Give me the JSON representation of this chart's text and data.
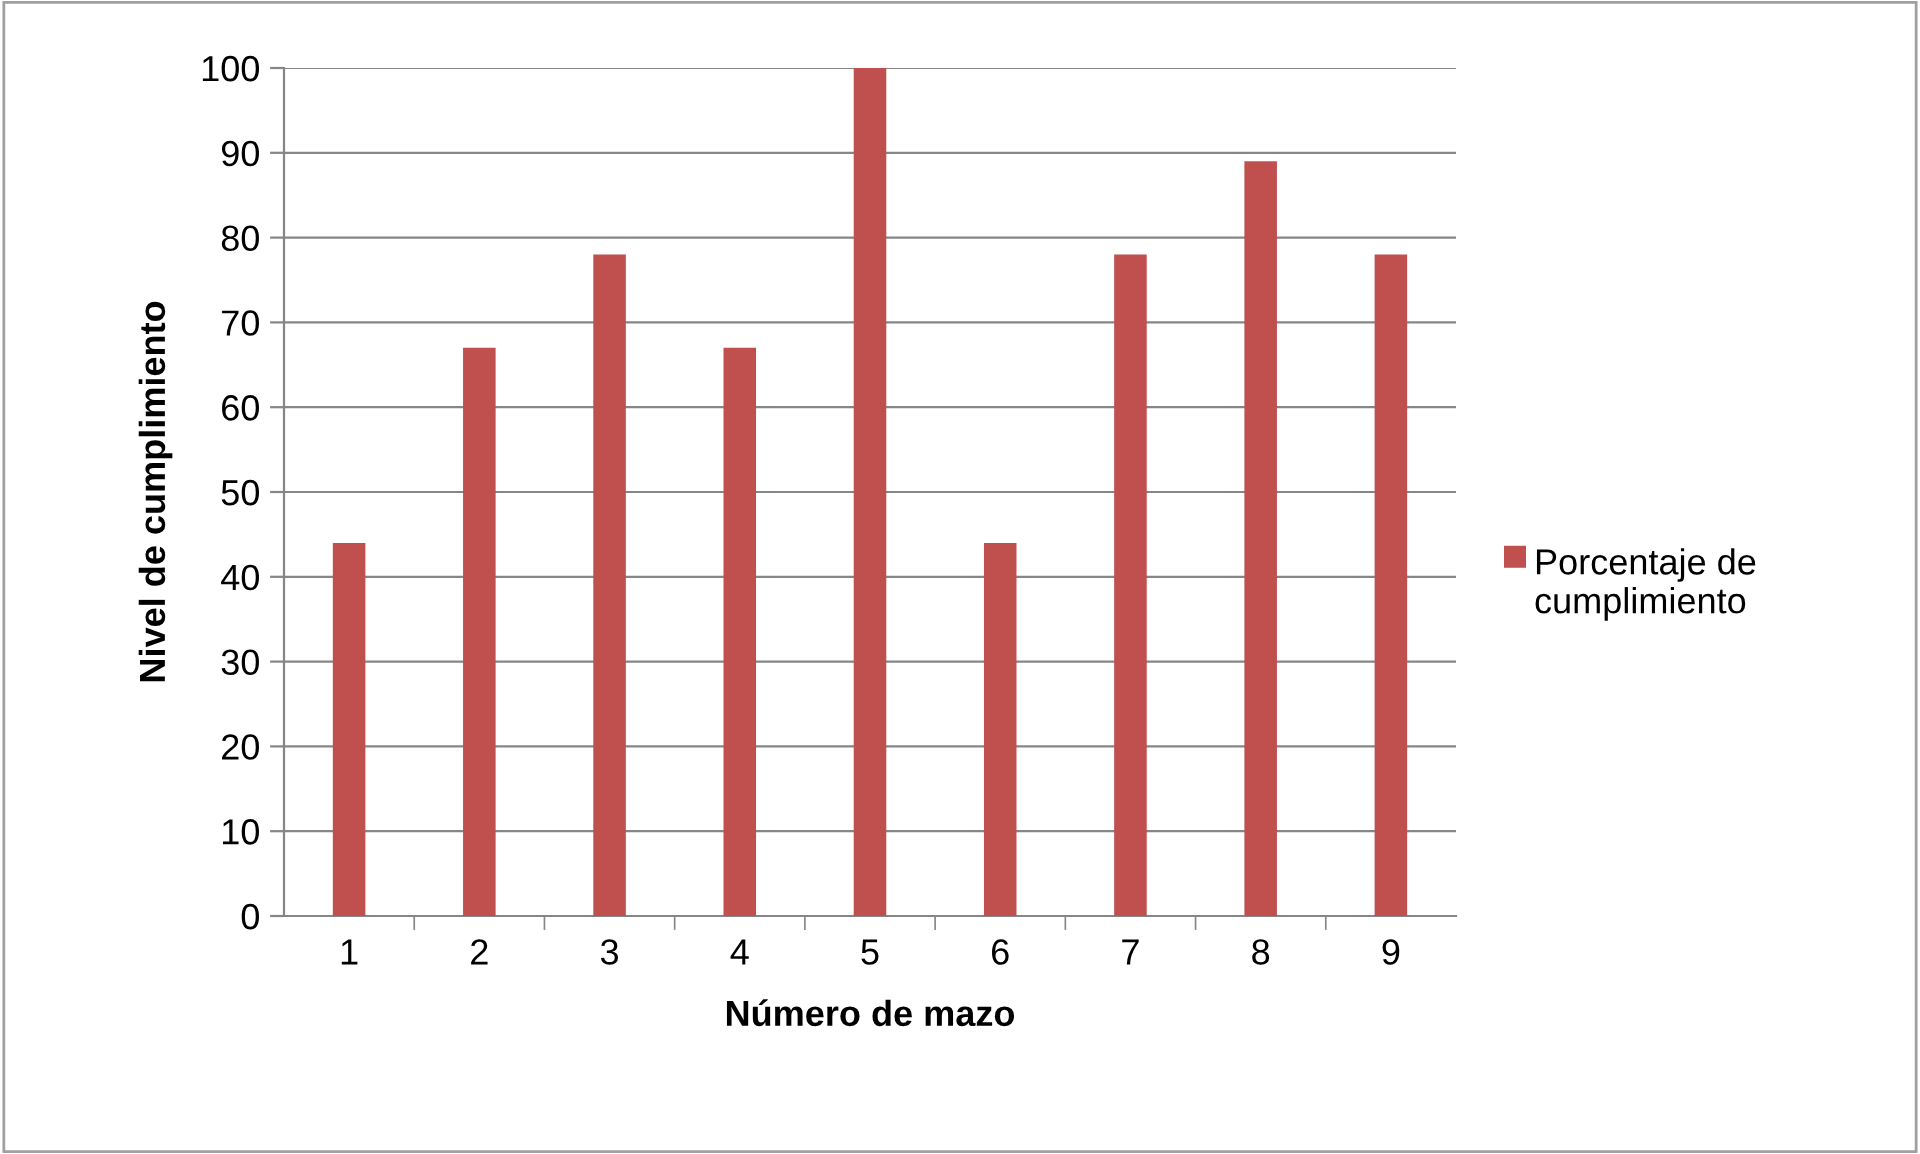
{
  "chart_data": {
    "type": "bar",
    "xlabel": "Número de mazo",
    "ylabel": "Nivel de cumplimiento",
    "categories": [
      "1",
      "2",
      "3",
      "4",
      "5",
      "6",
      "7",
      "8",
      "9"
    ],
    "series": [
      {
        "name": "Porcentaje de cumplimiento",
        "color": "#c0504d",
        "values": [
          44,
          67,
          78,
          67,
          100,
          44,
          78,
          89,
          78
        ]
      }
    ],
    "ylim": [
      0,
      100
    ],
    "yticks": [
      0,
      10,
      20,
      30,
      40,
      50,
      60,
      70,
      80,
      90,
      100
    ],
    "grid": "y",
    "legend": "right"
  }
}
